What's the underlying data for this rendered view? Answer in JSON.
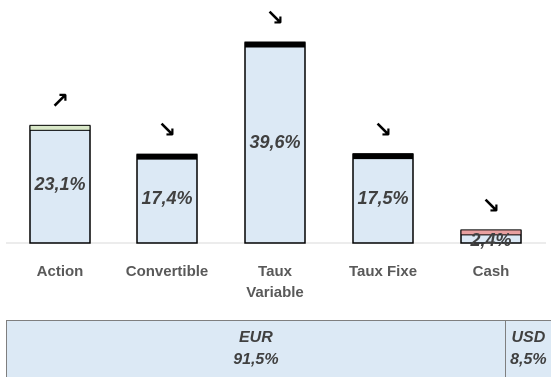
{
  "chart_data": {
    "type": "bar",
    "categories": [
      "Action",
      "Convertible",
      "Taux\nVariable",
      "Taux Fixe",
      "Cash"
    ],
    "values": [
      23.1,
      17.4,
      39.6,
      17.5,
      2.4
    ],
    "value_labels": [
      "23,1%",
      "17,4%",
      "39,6%",
      "17,5%",
      "2,4%"
    ],
    "trend_arrows": [
      "↗",
      "↘",
      "↘",
      "↘",
      "↘"
    ],
    "bar_fill": "#dce9f5",
    "bar_top_colors": [
      "#d9e8c8",
      "#000000",
      "#000000",
      "#000000",
      "#e8a0a0"
    ],
    "ylim": [
      0,
      42
    ]
  },
  "currency_split": [
    {
      "code": "EUR",
      "pct": "91,5%",
      "value": 91.5
    },
    {
      "code": "USD",
      "pct": "8,5%",
      "value": 8.5
    }
  ]
}
